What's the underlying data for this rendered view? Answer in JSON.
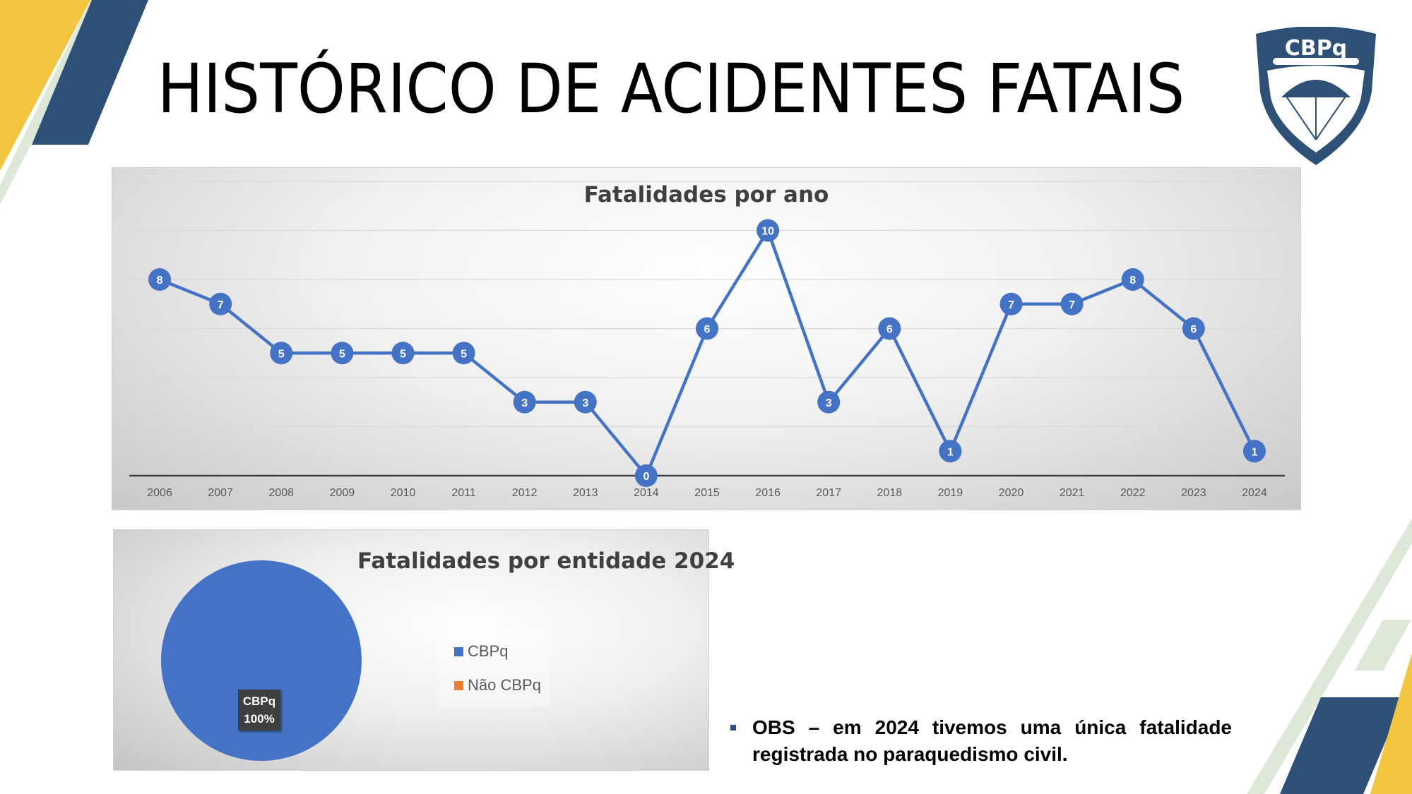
{
  "page": {
    "title": "HISTÓRICO  DE  ACIDENTES  FATAIS",
    "logo_text": "CBPq",
    "note": "OBS – em 2024 tivemos uma única fatalidade registrada no paraquedismo civil."
  },
  "colors": {
    "series": "#4472C4",
    "yellow": "#F2C440",
    "navy": "#2E5077",
    "pale_green": "#DDE8D8"
  },
  "chart_data": [
    {
      "type": "line",
      "title": "Fatalidades por ano",
      "x": [
        "2006",
        "2007",
        "2008",
        "2009",
        "2010",
        "2011",
        "2012",
        "2013",
        "2014",
        "2015",
        "2016",
        "2017",
        "2018",
        "2019",
        "2020",
        "2021",
        "2022",
        "2023",
        "2024"
      ],
      "series": [
        {
          "values": [
            8,
            7,
            5,
            5,
            5,
            5,
            3,
            3,
            0,
            6,
            10,
            3,
            6,
            1,
            7,
            7,
            8,
            6,
            1
          ]
        }
      ],
      "ylim": [
        0,
        12
      ],
      "grid": true,
      "data_labels": true
    },
    {
      "type": "pie",
      "title": "Fatalidades por entidade 2024",
      "categories": [
        "CBPq",
        "Não CBPq"
      ],
      "values": [
        100,
        0
      ],
      "colors": [
        "#4472C4",
        "#ED7D31"
      ],
      "slice_labels": [
        {
          "name": "CBPq",
          "percent": "100%"
        }
      ],
      "legend": "right"
    }
  ]
}
